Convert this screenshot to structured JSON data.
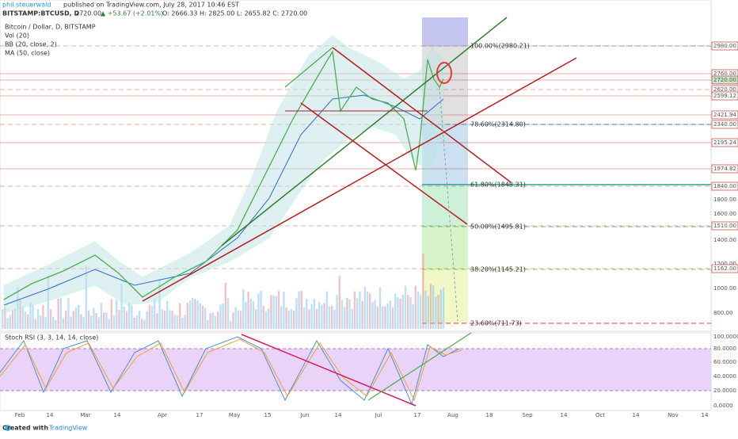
{
  "header": {
    "author": "phil.steuerwald",
    "published": "published on TradingView.com, July 28, 2017 10:46 EST",
    "symbol": "BITSTAMP:BTCUSD, D",
    "last": "2720.00",
    "change": "▲ +53.67 (+2.01%)",
    "ohlc": "O: 2666.33 H: 2825.00 L: 2655.82 C: 2720.00"
  },
  "legend": [
    "Bitcoin / Dollar, D, BITSTAMP",
    "Vol (20)",
    "BB (20, close, 2)",
    "MA (50, close)"
  ],
  "price_axis": [
    "2980.00",
    "2760.00",
    "2720.00",
    "2620.00",
    "2599.12",
    "2421.94",
    "2340.00",
    "2195.24",
    "1974.82",
    "1840.00",
    "1800.00",
    "1600.00",
    "1510.00",
    "1400.00",
    "1200.00",
    "1162.00",
    "1000.00",
    "800.00"
  ],
  "fib_labels": [
    "100.00%(2980.21)",
    "78.60%(2314.80)",
    "61.80%(1848.31)",
    "50.00%(1495.81)",
    "38.20%(1145.21)",
    "23.60%(711.73)"
  ],
  "stoch": {
    "title": "Stoch RSI (3, 3, 14, 14, close)",
    "axis": [
      "100.0000",
      "80.0000",
      "60.0000",
      "40.0000",
      "20.0000",
      "0.0000"
    ]
  },
  "time_axis": [
    "Feb",
    "14",
    "Mar",
    "14",
    "Apr",
    "17",
    "May",
    "15",
    "Jun",
    "14",
    "Jul",
    "17",
    "Aug",
    "18",
    "Sep",
    "14",
    "Oct",
    "14",
    "Nov",
    "14"
  ],
  "footer": {
    "created": "Created with",
    "brand": "TradingView"
  }
}
